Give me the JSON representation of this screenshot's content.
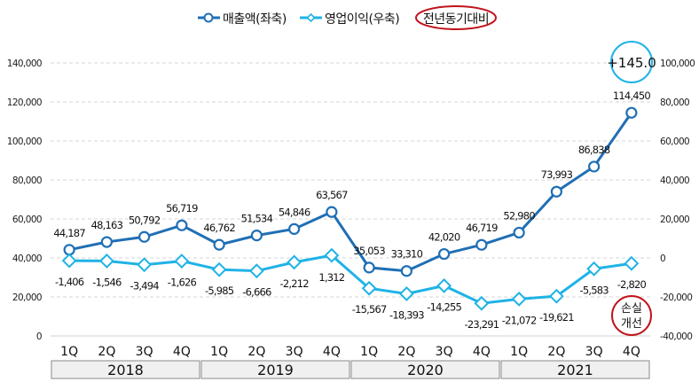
{
  "chart_data": {
    "type": "line",
    "title": "",
    "years": [
      "2018",
      "2019",
      "2020",
      "2021"
    ],
    "categories": [
      "1Q",
      "2Q",
      "3Q",
      "4Q",
      "1Q",
      "2Q",
      "3Q",
      "4Q",
      "1Q",
      "2Q",
      "3Q",
      "4Q",
      "1Q",
      "2Q",
      "3Q",
      "4Q"
    ],
    "series": [
      {
        "name": "매출액(좌축)",
        "axis": "left",
        "color": "#1f6fb5",
        "marker": "circle",
        "values": [
          44187,
          48163,
          50792,
          56719,
          46762,
          51534,
          54846,
          63567,
          35053,
          33310,
          42020,
          46719,
          52980,
          73993,
          86838,
          114450
        ],
        "labels": [
          "44,187",
          "48,163",
          "50,792",
          "56,719",
          "46,762",
          "51,534",
          "54,846",
          "63,567",
          "35,053",
          "33,310",
          "42,020",
          "46,719",
          "52,980",
          "73,993",
          "86,838",
          "114,450"
        ]
      },
      {
        "name": "영업이익(우축)",
        "axis": "right",
        "color": "#1fb3e6",
        "marker": "diamond",
        "values": [
          -1406,
          -1546,
          -3494,
          -1626,
          -5985,
          -6666,
          -2212,
          1312,
          -15567,
          -18393,
          -14255,
          -23291,
          -21072,
          -19621,
          -5583,
          -2820
        ],
        "labels": [
          "-1,406",
          "-1,546",
          "-3,494",
          "-1,626",
          "-5,985",
          "-6,666",
          "-2,212",
          "1,312",
          "-15,567",
          "-18,393",
          "-14,255",
          "-23,291",
          "-21,072",
          "-19,621",
          "-5,583",
          "-2,820"
        ]
      }
    ],
    "left_axis": {
      "range": [
        0,
        140000
      ],
      "ticks": [
        "0",
        "20,000",
        "40,000",
        "60,000",
        "80,000",
        "100,000",
        "120,000",
        "140,000"
      ]
    },
    "right_axis": {
      "range": [
        -40000,
        100000
      ],
      "ticks": [
        "-40,000",
        "-20,000",
        "0",
        "20,000",
        "40,000",
        "60,000",
        "80,000",
        "100,000"
      ]
    },
    "grid": true,
    "legend_position": "top-center",
    "legend_note": "전년동기대비",
    "annotations": {
      "yoy_change": "+145.0",
      "loss_note_line1": "손실",
      "loss_note_line2": "개선"
    }
  }
}
